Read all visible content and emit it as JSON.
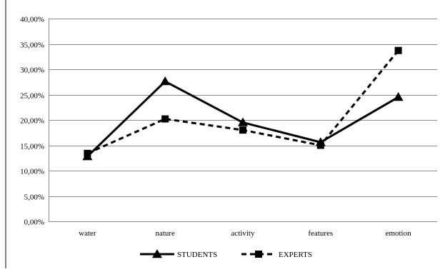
{
  "chart_data": {
    "type": "line",
    "title": "",
    "xlabel": "",
    "ylabel": "",
    "categories": [
      "water",
      "nature",
      "activity",
      "features",
      "emotion"
    ],
    "ylim": [
      0,
      40
    ],
    "y_ticks": [
      0,
      5,
      10,
      15,
      20,
      25,
      30,
      35,
      40
    ],
    "y_tick_labels": [
      "0,00%",
      "5,00%",
      "10,00%",
      "15,00%",
      "20,00%",
      "25,00%",
      "30,00%",
      "35,00%",
      "40,00%"
    ],
    "grid": true,
    "legend_position": "bottom",
    "series": [
      {
        "name": "STUDENTS",
        "values": [
          12.8,
          27.6,
          19.5,
          15.6,
          24.5
        ],
        "line": "solid",
        "marker": "triangle",
        "color": "#000000"
      },
      {
        "name": "EXPERTS",
        "values": [
          13.4,
          20.2,
          18.0,
          15.0,
          33.7
        ],
        "line": "dashed",
        "marker": "square",
        "color": "#000000"
      }
    ]
  }
}
